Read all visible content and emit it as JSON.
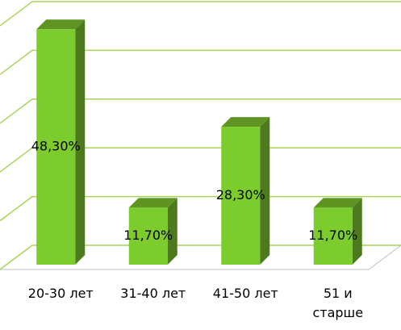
{
  "chart_data": {
    "type": "bar3d",
    "categories": [
      "20-30 лет",
      "31-40 лет",
      "41-50 лет",
      "51 и старше"
    ],
    "values": [
      48.3,
      11.7,
      28.3,
      11.7
    ],
    "value_labels": [
      "48,30%",
      "11,70%",
      "28,30%",
      "11,70%"
    ],
    "color": "#7ccc2e",
    "ylim": [
      0,
      50
    ],
    "yticks": [
      0,
      10,
      20,
      30,
      40,
      50
    ],
    "grid": true
  }
}
